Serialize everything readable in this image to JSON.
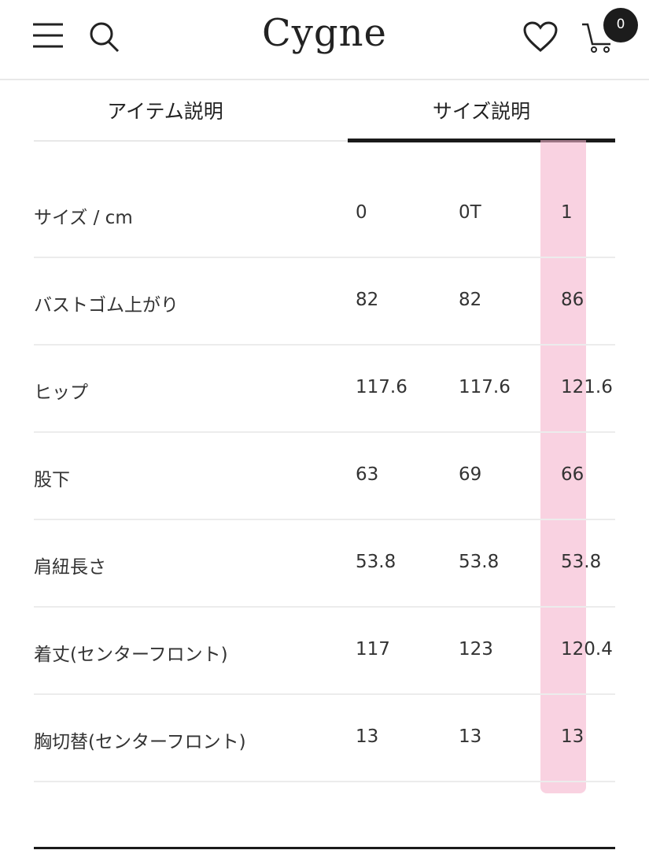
{
  "header": {
    "logo": "Cygne",
    "cart_count": "0",
    "icons": [
      "menu-icon",
      "search-icon",
      "heart-icon",
      "cart-icon"
    ]
  },
  "tabs": [
    {
      "label": "アイテム説明",
      "active": false
    },
    {
      "label": "サイズ説明",
      "active": true
    }
  ],
  "highlight_color": "#f5b4cd",
  "size_table": {
    "rows": [
      [
        "サイズ / cm",
        "0",
        "0T",
        "1"
      ],
      [
        "バストゴム上がり",
        "82",
        "82",
        "86"
      ],
      [
        "ヒップ",
        "117.6",
        "117.6",
        "121.6"
      ],
      [
        "股下",
        "63",
        "69",
        "66"
      ],
      [
        "肩紐長さ",
        "53.8",
        "53.8",
        "53.8"
      ],
      [
        "着丈(センターフロント)",
        "117",
        "123",
        "120.4"
      ],
      [
        "胸切替(センターフロント)",
        "13",
        "13",
        "13"
      ]
    ]
  }
}
